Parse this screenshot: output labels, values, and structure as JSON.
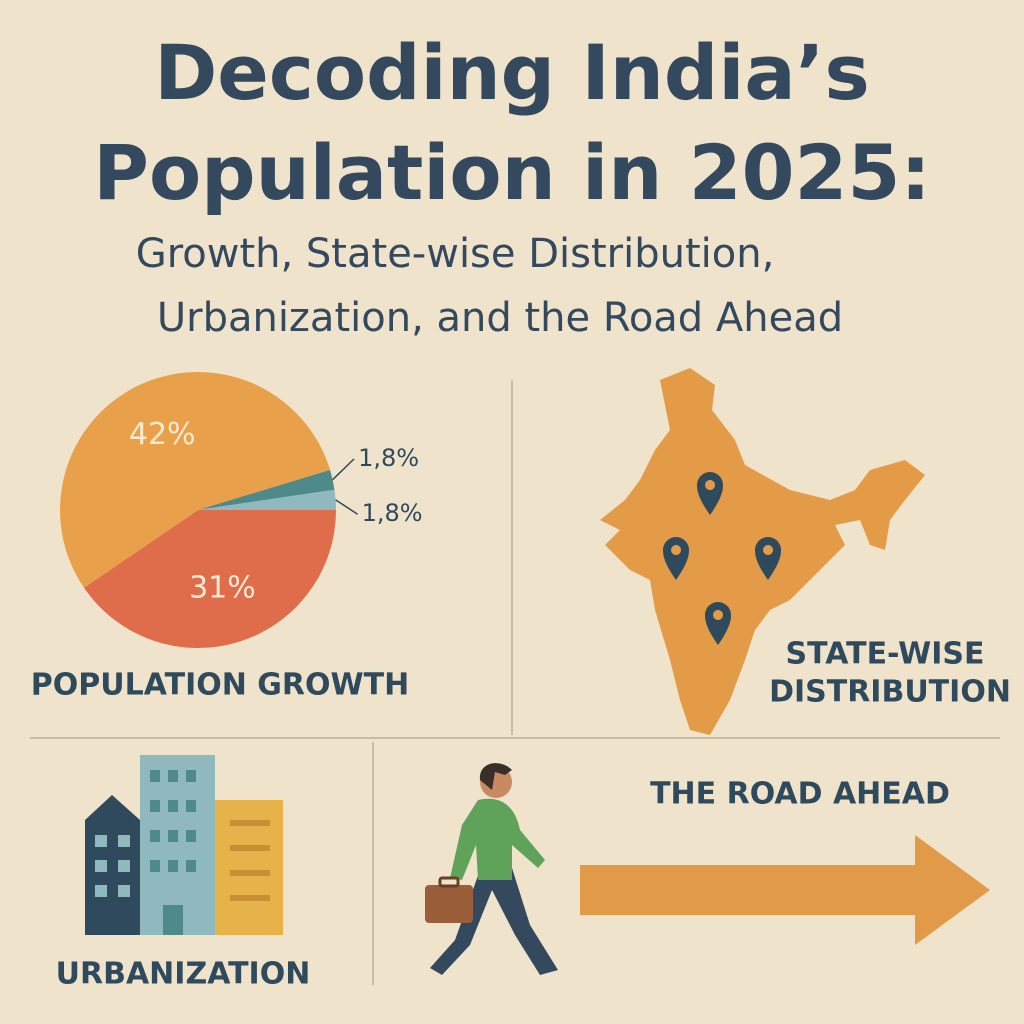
{
  "header": {
    "title_lines": [
      "Decoding India’s",
      "Population in 2025:"
    ],
    "subtitle_lines": [
      "Growth, State-wise Distribution,",
      "Urbanization, and the Road Ahead"
    ]
  },
  "chart_data": {
    "type": "pie",
    "title": "POPULATION GROWTH",
    "values": [
      31,
      42,
      1.8,
      1.8
    ],
    "value_labels": [
      "31%",
      "42%",
      "1,8%",
      "1,8%"
    ],
    "colors": [
      "#df6d4b",
      "#e8a14a",
      "#4f8a8b",
      "#8fb9bf"
    ]
  },
  "panels": {
    "map_label_lines": [
      "STATE-WISE",
      "DISTRIBUTION"
    ],
    "urbanization": "URBANIZATION",
    "road": "THE ROAD AHEAD"
  }
}
